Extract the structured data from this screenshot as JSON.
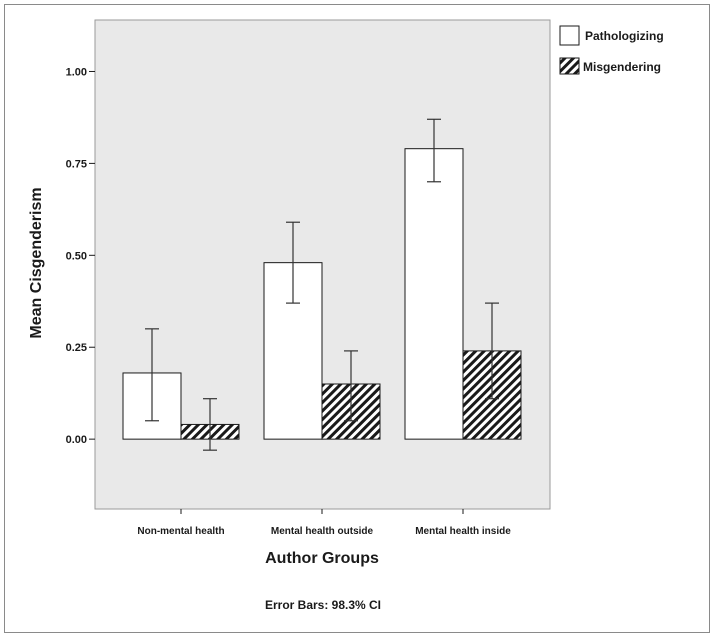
{
  "chart_data": {
    "type": "bar",
    "xlabel": "Author Groups",
    "ylabel": "Mean Cisgenderism",
    "categories": [
      "Non-mental health",
      "Mental health outside",
      "Mental health inside"
    ],
    "series": [
      {
        "name": "Pathologizing",
        "pattern": "plain",
        "values": [
          0.18,
          0.48,
          0.79
        ],
        "ci_low": [
          0.05,
          0.37,
          0.7
        ],
        "ci_high": [
          0.3,
          0.59,
          0.87
        ]
      },
      {
        "name": "Misgendering",
        "pattern": "hatched",
        "values": [
          0.04,
          0.15,
          0.24
        ],
        "ci_low": [
          -0.03,
          0.05,
          0.11
        ],
        "ci_high": [
          0.11,
          0.24,
          0.37
        ]
      }
    ],
    "yticks": [
      "0.00",
      "0.25",
      "0.50",
      "0.75",
      "1.00"
    ],
    "ylim": [
      -0.19,
      1.14
    ],
    "legend_position": "top-right",
    "note": "Error Bars: 98.3% CI",
    "colors": {
      "plot_background": "#e9e9e9",
      "bar_fill": "#ffffff",
      "bar_stroke": "#1a1a1a",
      "hatch": "#1a1a1a"
    }
  }
}
